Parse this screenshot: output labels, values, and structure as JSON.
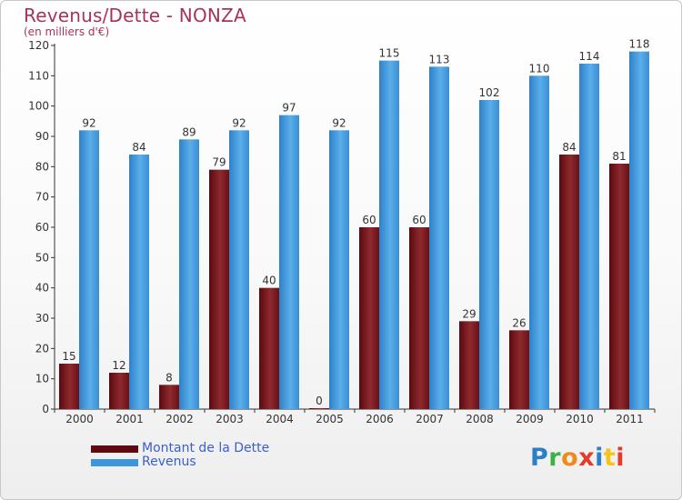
{
  "chart_data": {
    "type": "bar",
    "title": "Revenus/Dette - NONZA",
    "subtitle": "(en milliers d'€)",
    "categories": [
      "2000",
      "2001",
      "2002",
      "2003",
      "2004",
      "2005",
      "2006",
      "2007",
      "2008",
      "2009",
      "2010",
      "2011"
    ],
    "series": [
      {
        "name": "Montant de la Dette",
        "color": "#7a1418",
        "values": [
          15,
          12,
          8,
          79,
          40,
          0,
          60,
          60,
          29,
          26,
          84,
          81
        ]
      },
      {
        "name": "Revenus",
        "color": "#3d95dc",
        "values": [
          92,
          84,
          89,
          92,
          97,
          92,
          115,
          113,
          102,
          110,
          114,
          118
        ]
      }
    ],
    "ylim": [
      0,
      120
    ],
    "yticks": [
      0,
      10,
      20,
      30,
      40,
      50,
      60,
      70,
      80,
      90,
      100,
      110,
      120
    ],
    "grid": false,
    "legend_position": "bottom-left",
    "data_labels": true
  },
  "logo": {
    "text": "Proxiti",
    "colors": [
      "#2b7fc9",
      "#3db04a",
      "#f08a1c",
      "#e23c2c",
      "#2b7fc9",
      "#f5c41a",
      "#e23c2c"
    ]
  }
}
